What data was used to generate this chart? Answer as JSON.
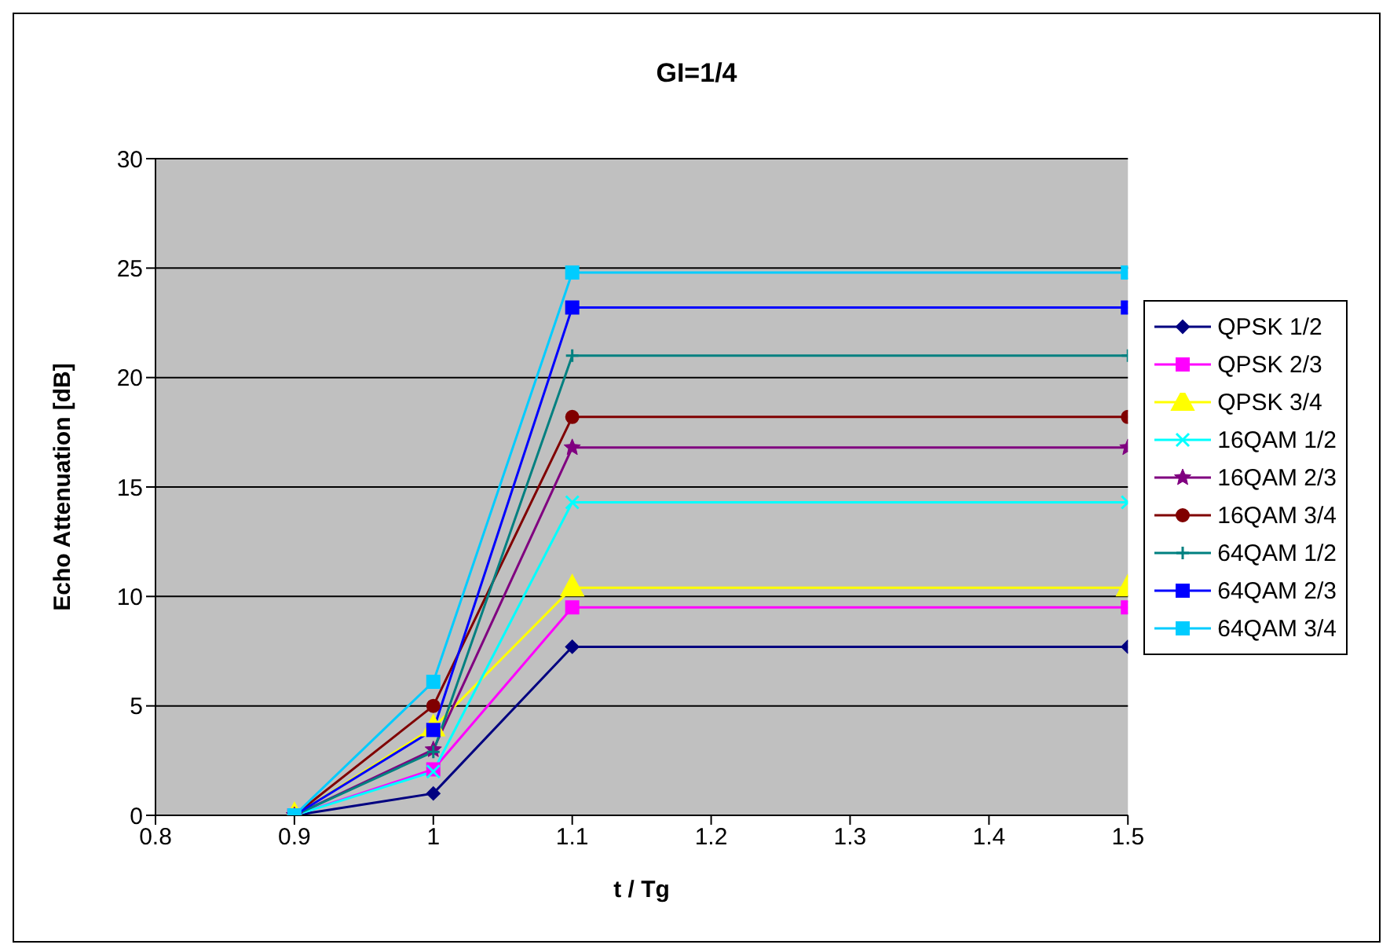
{
  "chart_data": {
    "type": "line",
    "title": "GI=1/4",
    "xlabel": "t / Tg",
    "ylabel": "Echo Attenuation [dB]",
    "x": [
      0.9,
      1,
      1.1,
      1.5
    ],
    "xlim": [
      0.8,
      1.5
    ],
    "xticks": [
      0.8,
      0.9,
      1,
      1.1,
      1.2,
      1.3,
      1.4,
      1.5
    ],
    "ylim": [
      0,
      30
    ],
    "yticks": [
      0,
      5,
      10,
      15,
      20,
      25,
      30
    ],
    "grid": "y",
    "legend": "right",
    "series": [
      {
        "name": "QPSK 1/2",
        "color": "#000080",
        "marker": "diamond",
        "values": [
          0,
          1.0,
          7.7,
          7.7
        ]
      },
      {
        "name": "QPSK 2/3",
        "color": "#ff00ff",
        "marker": "square",
        "values": [
          0,
          2.1,
          9.5,
          9.5
        ]
      },
      {
        "name": "QPSK 3/4",
        "color": "#ffff00",
        "marker": "triangle",
        "values": [
          0,
          4.0,
          10.4,
          10.4
        ]
      },
      {
        "name": "16QAM 1/2",
        "color": "#00ffff",
        "marker": "cross",
        "values": [
          0,
          2.0,
          14.3,
          14.3
        ]
      },
      {
        "name": "16QAM 2/3",
        "color": "#800080",
        "marker": "star",
        "values": [
          0,
          3.0,
          16.8,
          16.8
        ]
      },
      {
        "name": "16QAM 3/4",
        "color": "#800000",
        "marker": "circle",
        "values": [
          0,
          5.0,
          18.2,
          18.2
        ]
      },
      {
        "name": "64QAM 1/2",
        "color": "#008080",
        "marker": "plus",
        "values": [
          0,
          2.9,
          21.0,
          21.0
        ]
      },
      {
        "name": "64QAM 2/3",
        "color": "#0000ff",
        "marker": "square",
        "values": [
          0,
          3.9,
          23.2,
          23.2
        ]
      },
      {
        "name": "64QAM 3/4",
        "color": "#00ccff",
        "marker": "square",
        "values": [
          0,
          6.1,
          24.8,
          24.8
        ]
      }
    ]
  }
}
